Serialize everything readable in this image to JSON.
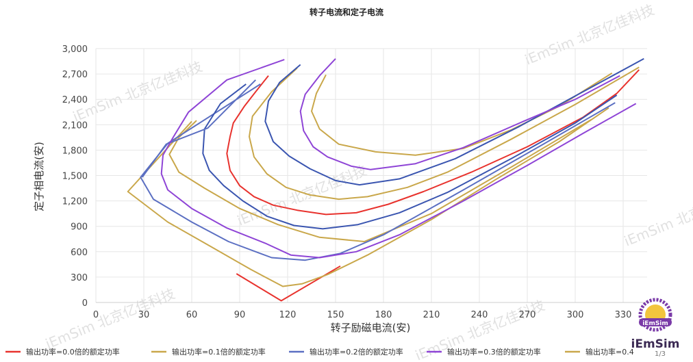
{
  "chart_data": {
    "type": "line",
    "title": "转子电流和定子电流",
    "xlabel": "转子励磁电流(安)",
    "ylabel": "定子相电流(安)",
    "xlim": [
      0,
      345
    ],
    "ylim": [
      0,
      3000
    ],
    "xticks": [
      "0",
      "30",
      "60",
      "90",
      "120",
      "150",
      "180",
      "210",
      "240",
      "270",
      "300",
      "330"
    ],
    "yticks": [
      "0",
      "300",
      "600",
      "900",
      "1,200",
      "1,500",
      "1,800",
      "2,100",
      "2,400",
      "2,700",
      "3,000"
    ],
    "grid": true,
    "legend_position": "bottom",
    "series": [
      {
        "name": "输出功率=0.0倍的额定功率",
        "color": "#e8322d",
        "points": [
          [
            88,
            340
          ],
          [
            116,
            20
          ],
          [
            153,
            430
          ]
        ]
      },
      {
        "name": "输出功率=0.0倍的额定功率",
        "color": "#e8322d",
        "points": [
          [
            108,
            2680
          ],
          [
            100,
            2490
          ],
          [
            93,
            2320
          ],
          [
            86,
            2120
          ],
          [
            84,
            1960
          ],
          [
            82,
            1760
          ],
          [
            84,
            1560
          ],
          [
            90,
            1380
          ],
          [
            99,
            1250
          ],
          [
            111,
            1150
          ],
          [
            126,
            1090
          ],
          [
            144,
            1040
          ],
          [
            163,
            1060
          ],
          [
            183,
            1160
          ],
          [
            205,
            1310
          ],
          [
            235,
            1540
          ],
          [
            270,
            1840
          ],
          [
            305,
            2190
          ],
          [
            326,
            2470
          ],
          [
            340,
            2750
          ]
        ]
      },
      {
        "name": "输出功率=0.1倍的额定功率",
        "color": "#c9a74a",
        "points": [
          [
            60,
            2140
          ],
          [
            20,
            1310
          ],
          [
            45,
            950
          ],
          [
            72,
            660
          ],
          [
            97,
            390
          ],
          [
            117,
            190
          ],
          [
            129,
            220
          ],
          [
            145,
            330
          ],
          [
            170,
            560
          ],
          [
            210,
            980
          ],
          [
            250,
            1450
          ],
          [
            290,
            1900
          ],
          [
            321,
            2300
          ]
        ]
      },
      {
        "name": "输出功率=0.1倍的额定功率",
        "color": "#c9a74a",
        "points": [
          [
            126,
            2770
          ],
          [
            110,
            2490
          ],
          [
            98,
            2200
          ],
          [
            96,
            1960
          ],
          [
            99,
            1720
          ],
          [
            107,
            1520
          ],
          [
            119,
            1360
          ],
          [
            134,
            1270
          ],
          [
            152,
            1220
          ],
          [
            170,
            1250
          ],
          [
            195,
            1360
          ],
          [
            220,
            1540
          ],
          [
            260,
            1930
          ],
          [
            300,
            2340
          ],
          [
            340,
            2780
          ]
        ]
      },
      {
        "name": "输出功率=0.1倍的额定功率",
        "color": "#c9a74a",
        "points": [
          [
            144,
            2690
          ],
          [
            138,
            2470
          ],
          [
            135,
            2260
          ],
          [
            140,
            2050
          ],
          [
            152,
            1870
          ],
          [
            175,
            1780
          ],
          [
            200,
            1740
          ],
          [
            230,
            1820
          ],
          [
            260,
            2040
          ],
          [
            290,
            2320
          ],
          [
            323,
            2710
          ]
        ]
      },
      {
        "name": "输出功率=0.1倍的额定功率",
        "color": "#c9a74a",
        "points": [
          [
            63,
            2150
          ],
          [
            52,
            1950
          ],
          [
            46,
            1750
          ],
          [
            52,
            1540
          ],
          [
            68,
            1350
          ],
          [
            90,
            1110
          ],
          [
            114,
            920
          ],
          [
            140,
            770
          ],
          [
            168,
            720
          ],
          [
            210,
            1050
          ],
          [
            260,
            1600
          ],
          [
            310,
            2160
          ]
        ]
      },
      {
        "name": "输出功率=0.2倍的额定功率",
        "color": "#5b6fc2",
        "points": [
          [
            103,
            2580
          ],
          [
            45,
            1880
          ],
          [
            28,
            1480
          ],
          [
            36,
            1220
          ],
          [
            60,
            950
          ],
          [
            83,
            720
          ],
          [
            110,
            530
          ],
          [
            131,
            500
          ],
          [
            153,
            580
          ],
          [
            180,
            800
          ],
          [
            230,
            1330
          ],
          [
            280,
            1870
          ],
          [
            325,
            2360
          ]
        ]
      },
      {
        "name": "输出功率=0.2倍的额定功率",
        "color": "#3a55b0",
        "points": [
          [
            128,
            2810
          ],
          [
            115,
            2600
          ],
          [
            108,
            2380
          ],
          [
            106,
            2140
          ],
          [
            111,
            1900
          ],
          [
            121,
            1730
          ],
          [
            134,
            1580
          ],
          [
            150,
            1440
          ],
          [
            165,
            1390
          ],
          [
            190,
            1460
          ],
          [
            225,
            1700
          ],
          [
            265,
            2080
          ],
          [
            300,
            2440
          ],
          [
            343,
            2880
          ]
        ]
      },
      {
        "name": "输出功率=0.2倍的额定功率",
        "color": "#3a55b0",
        "points": [
          [
            94,
            2580
          ],
          [
            78,
            2350
          ],
          [
            68,
            2050
          ],
          [
            67,
            1760
          ],
          [
            71,
            1560
          ],
          [
            80,
            1380
          ],
          [
            92,
            1200
          ],
          [
            107,
            1020
          ],
          [
            124,
            910
          ],
          [
            142,
            870
          ],
          [
            164,
            920
          ],
          [
            190,
            1060
          ],
          [
            220,
            1300
          ],
          [
            260,
            1700
          ],
          [
            300,
            2120
          ],
          [
            326,
            2450
          ]
        ]
      },
      {
        "name": "输出功率=0.2倍的额定功率",
        "color": "#5b6fc2",
        "points": [
          [
            29,
            1480
          ],
          [
            44,
            1870
          ],
          [
            70,
            2060
          ],
          [
            100,
            2630
          ]
        ]
      },
      {
        "name": "输出功率=0.3倍的额定功率",
        "color": "#8e44d6",
        "points": [
          [
            118,
            2870
          ],
          [
            82,
            2630
          ],
          [
            58,
            2250
          ],
          [
            48,
            1940
          ],
          [
            42,
            1740
          ],
          [
            41,
            1520
          ],
          [
            45,
            1330
          ],
          [
            60,
            1110
          ],
          [
            82,
            880
          ],
          [
            106,
            700
          ],
          [
            122,
            560
          ],
          [
            140,
            530
          ],
          [
            163,
            600
          ],
          [
            190,
            800
          ],
          [
            230,
            1200
          ],
          [
            270,
            1620
          ],
          [
            305,
            2000
          ],
          [
            338,
            2350
          ]
        ]
      },
      {
        "name": "输出功率=0.3倍的额定功率",
        "color": "#8e44d6",
        "points": [
          [
            150,
            2880
          ],
          [
            140,
            2680
          ],
          [
            131,
            2460
          ],
          [
            128,
            2260
          ],
          [
            130,
            2030
          ],
          [
            136,
            1840
          ],
          [
            145,
            1720
          ],
          [
            160,
            1610
          ],
          [
            172,
            1570
          ],
          [
            200,
            1640
          ],
          [
            230,
            1830
          ],
          [
            270,
            2160
          ],
          [
            300,
            2400
          ],
          [
            328,
            2680
          ]
        ]
      }
    ],
    "legend": [
      {
        "label": "输出功率=0.0倍的额定功率",
        "color": "#e8322d"
      },
      {
        "label": "输出功率=0.1倍的额定功率",
        "color": "#c9a74a"
      },
      {
        "label": "输出功率=0.2倍的额定功率",
        "color": "#5b6fc2"
      },
      {
        "label": "输出功率=0.3倍的额定功率",
        "color": "#8e44d6"
      },
      {
        "label": "输出功率=0.4",
        "color": "#c9a74a"
      }
    ]
  },
  "watermark": "iEmSim 北京亿佳科技",
  "logo": {
    "text": "iEmSim",
    "badge": "iEmSim",
    "pager": "1/3"
  }
}
